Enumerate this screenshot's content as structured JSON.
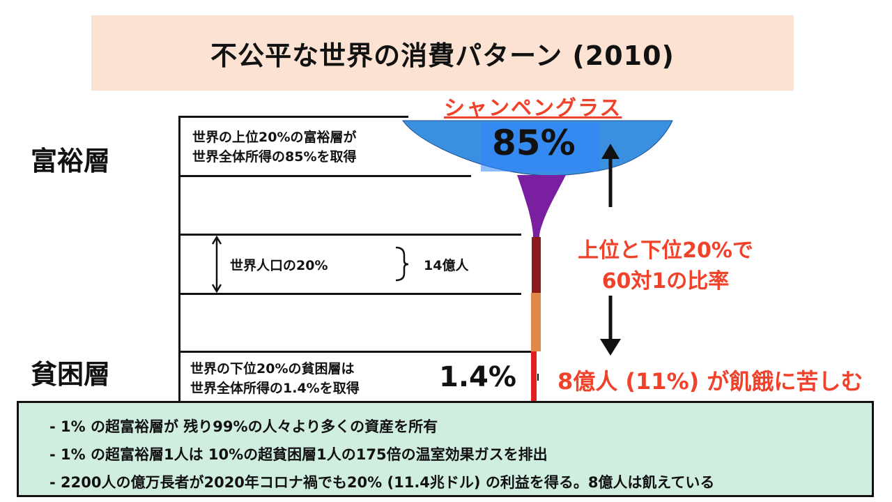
{
  "title": "不公平な世界の消費パターン (2010)",
  "layers": {
    "rich": "富裕層",
    "poor": "貧困層"
  },
  "glass_label": "シャンペングラス",
  "top_desc": [
    "世界の上位20%の富裕層が",
    "世界全体所得の85%を取得"
  ],
  "top_percent": "85%",
  "population": {
    "label": "世界人口の20%",
    "count": "14億人"
  },
  "bottom_desc": [
    "世界の下位20%の貧困層は",
    "世界全体所得の1.4%を取得"
  ],
  "bottom_percent": "1.4%",
  "ratio": [
    "上位と下位20%で",
    "60対1の比率"
  ],
  "hunger": "8億人 (11%) が飢餓に苦しむ",
  "bullets": [
    "- 1% の超富裕層が 残り99%の人々より多くの資産を所有",
    "- 1% の超富裕層1人は 10%の超貧困層1人の175倍の温室効果ガスを排出",
    "- 2200人の億万長者が2020年コロナ禍でも20% (11.4兆ドル) の利益を得る。8億人は飢えている"
  ],
  "colors": {
    "title_bg": "#fbe2d2",
    "accent_red": "#f0412a",
    "glass_blue": "#3a8fe0",
    "glass_purple": "#7a1fa0",
    "band_darkred": "#8b1a1a",
    "band_orange": "#e0874a",
    "band_red": "#e02020",
    "bottom_bg": "#cfeee0"
  }
}
